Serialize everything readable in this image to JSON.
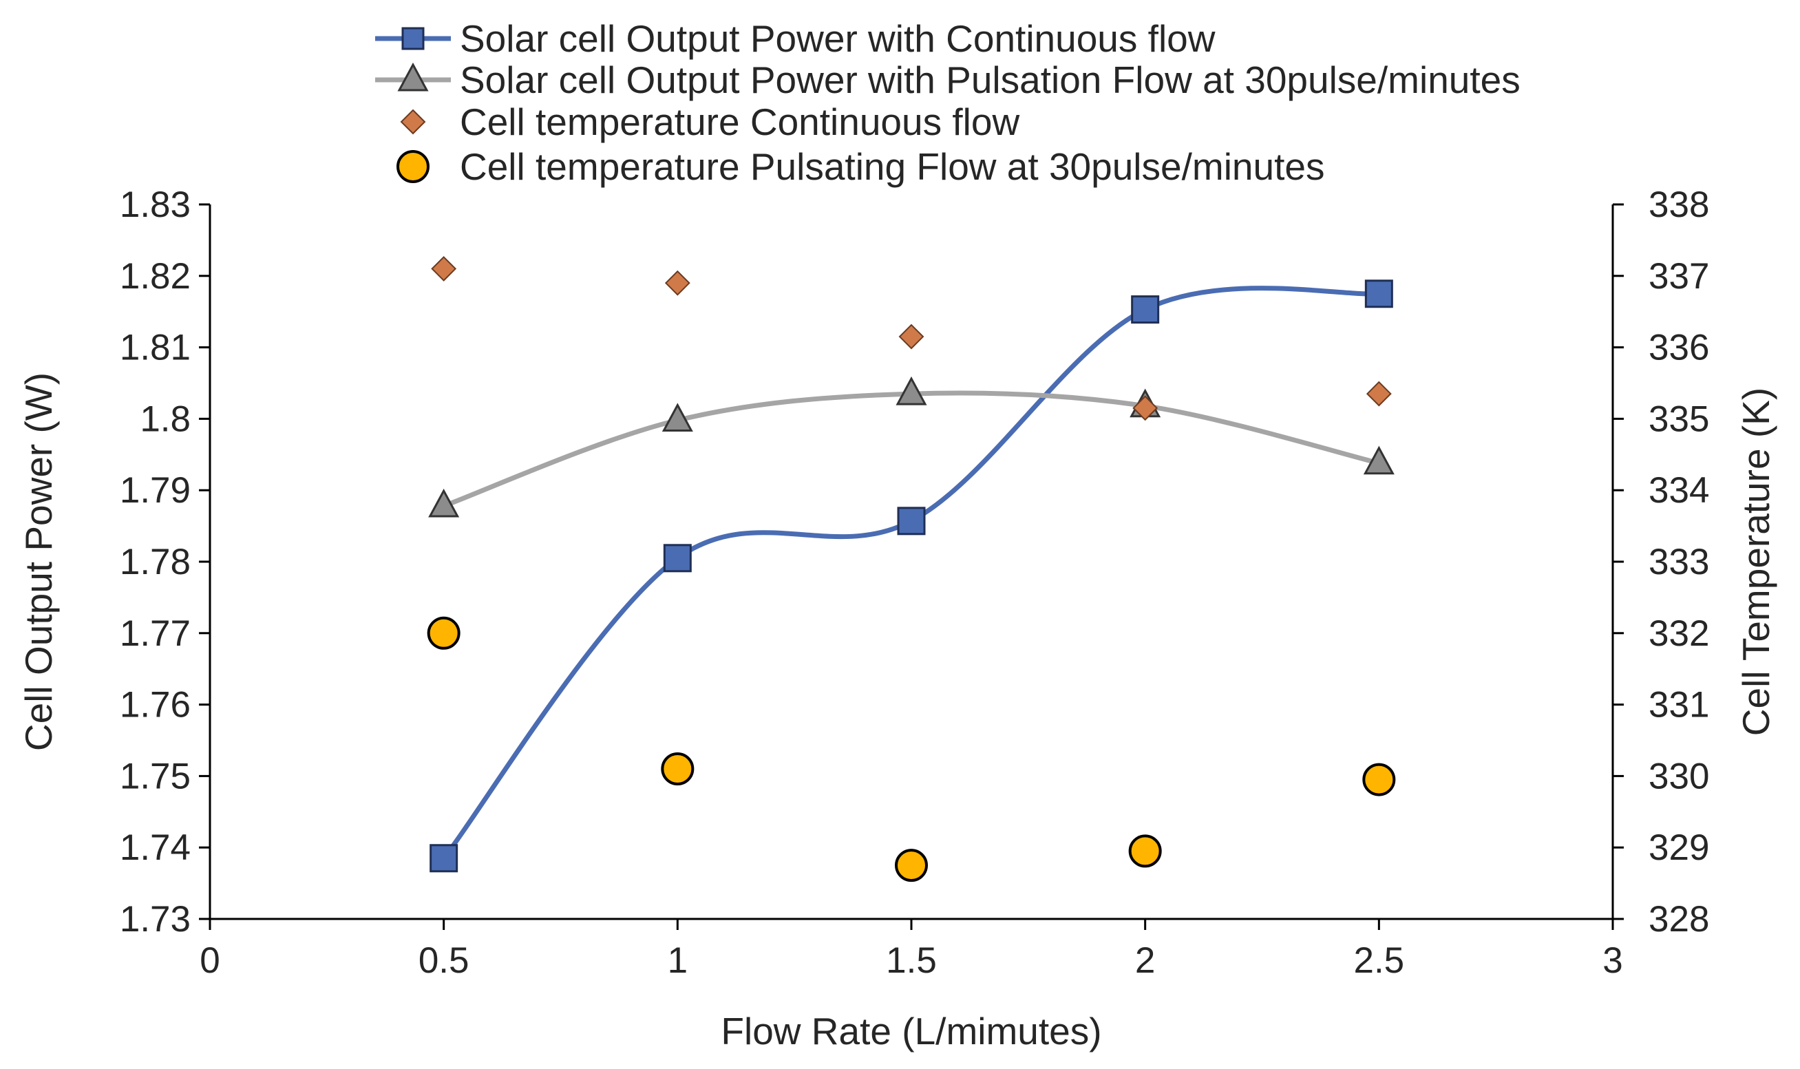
{
  "chart_data": {
    "type": "line",
    "title": "",
    "xlabel": "Flow Rate (L/mimutes)",
    "ylabel": "Cell Output Power (W)",
    "y2label": "Cell Temperature (K)",
    "xlim": [
      0,
      3
    ],
    "ylim": [
      1.73,
      1.83
    ],
    "y2lim": [
      328,
      338
    ],
    "x_ticks": [
      "0",
      "0.5",
      "1",
      "1.5",
      "2",
      "2.5",
      "3"
    ],
    "y_ticks": [
      "1.73",
      "1.74",
      "1.75",
      "1.76",
      "1.77",
      "1.78",
      "1.79",
      "1.8",
      "1.81",
      "1.82",
      "1.83"
    ],
    "y2_ticks": [
      "328",
      "329",
      "330",
      "331",
      "332",
      "333",
      "334",
      "335",
      "336",
      "337",
      "338"
    ],
    "grid": false,
    "legend_position": "top",
    "x": [
      0.5,
      1,
      1.5,
      2,
      2.5
    ],
    "series": [
      {
        "name": "Solar cell Output Power with Continuous flow",
        "axis": "left",
        "style": "smooth-line",
        "marker": "square",
        "line_color": "#4a6cb3",
        "marker_color": "#4a6cb3",
        "values": [
          1.7385,
          1.7805,
          1.7857,
          1.8153,
          1.8175
        ]
      },
      {
        "name": "Solar cell Output Power with Pulsation Flow at 30pulse/minutes",
        "axis": "left",
        "style": "smooth-line",
        "marker": "triangle",
        "line_color": "#a5a5a5",
        "marker_color": "#8c8c8c",
        "values": [
          1.7878,
          1.7998,
          1.8035,
          1.8018,
          1.7938
        ]
      },
      {
        "name": "Cell temperature Continuous flow",
        "axis": "right",
        "style": "markers",
        "marker": "diamond",
        "line_color": "",
        "marker_color": "#d07a4a",
        "values": [
          337.1,
          336.9,
          336.15,
          335.15,
          335.35
        ]
      },
      {
        "name": "Cell temperature Pulsating Flow at 30pulse/minutes",
        "axis": "right",
        "style": "markers",
        "marker": "circle",
        "line_color": "",
        "marker_color": "#ffb400",
        "values": [
          332.0,
          330.1,
          328.75,
          328.95,
          329.95
        ]
      }
    ]
  }
}
